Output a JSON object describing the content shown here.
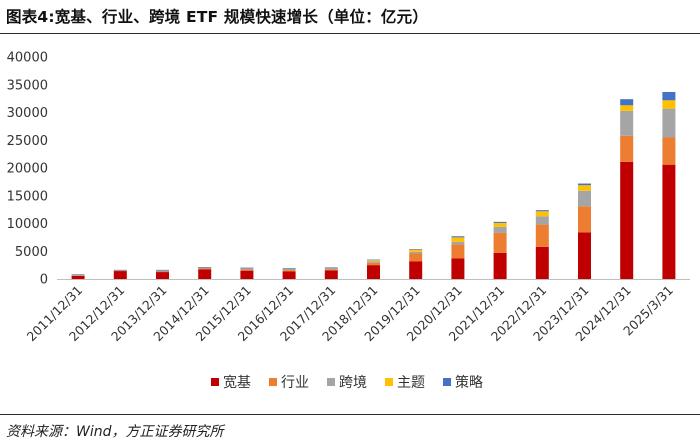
{
  "header": {
    "title": "图表4:宽基、行业、跨境 ETF 规模快速增长（单位：亿元）"
  },
  "footer": {
    "source": "资料来源：Wind，方正证券研究所"
  },
  "chart_data": {
    "type": "bar",
    "stacked": true,
    "title": "",
    "xlabel": "",
    "ylabel": "",
    "ylim": [
      0,
      40000
    ],
    "yticks": [
      "0",
      "5000",
      "10000",
      "15000",
      "20000",
      "25000",
      "30000",
      "35000",
      "40000"
    ],
    "grid": false,
    "legend_position": "bottom",
    "categories": [
      "2011/12/31",
      "2012/12/31",
      "2013/12/31",
      "2014/12/31",
      "2015/12/31",
      "2016/12/31",
      "2017/12/31",
      "2018/12/31",
      "2019/12/31",
      "2020/12/31",
      "2021/12/31",
      "2022/12/31",
      "2023/12/31",
      "2024/12/31",
      "2025/3/31"
    ],
    "series": [
      {
        "name": "宽基",
        "color": "#C00000",
        "values": [
          550,
          1450,
          1250,
          1750,
          1500,
          1350,
          1550,
          2500,
          3200,
          3700,
          4700,
          5800,
          8400,
          21100,
          20600
        ]
      },
      {
        "name": "行业",
        "color": "#ED7D31",
        "values": [
          100,
          50,
          100,
          150,
          200,
          250,
          200,
          400,
          1400,
          2500,
          3600,
          4000,
          4700,
          4700,
          4900
        ]
      },
      {
        "name": "跨境",
        "color": "#A5A5A5",
        "values": [
          150,
          100,
          250,
          200,
          300,
          300,
          300,
          300,
          300,
          500,
          1100,
          1500,
          2800,
          4500,
          5200
        ]
      },
      {
        "name": "主题",
        "color": "#FFC000",
        "values": [
          0,
          0,
          0,
          0,
          0,
          0,
          0,
          200,
          400,
          800,
          700,
          900,
          1000,
          1000,
          1500
        ]
      },
      {
        "name": "策略",
        "color": "#4472C4",
        "values": [
          50,
          50,
          50,
          50,
          50,
          50,
          50,
          100,
          100,
          200,
          200,
          200,
          300,
          1100,
          1500
        ]
      }
    ]
  }
}
